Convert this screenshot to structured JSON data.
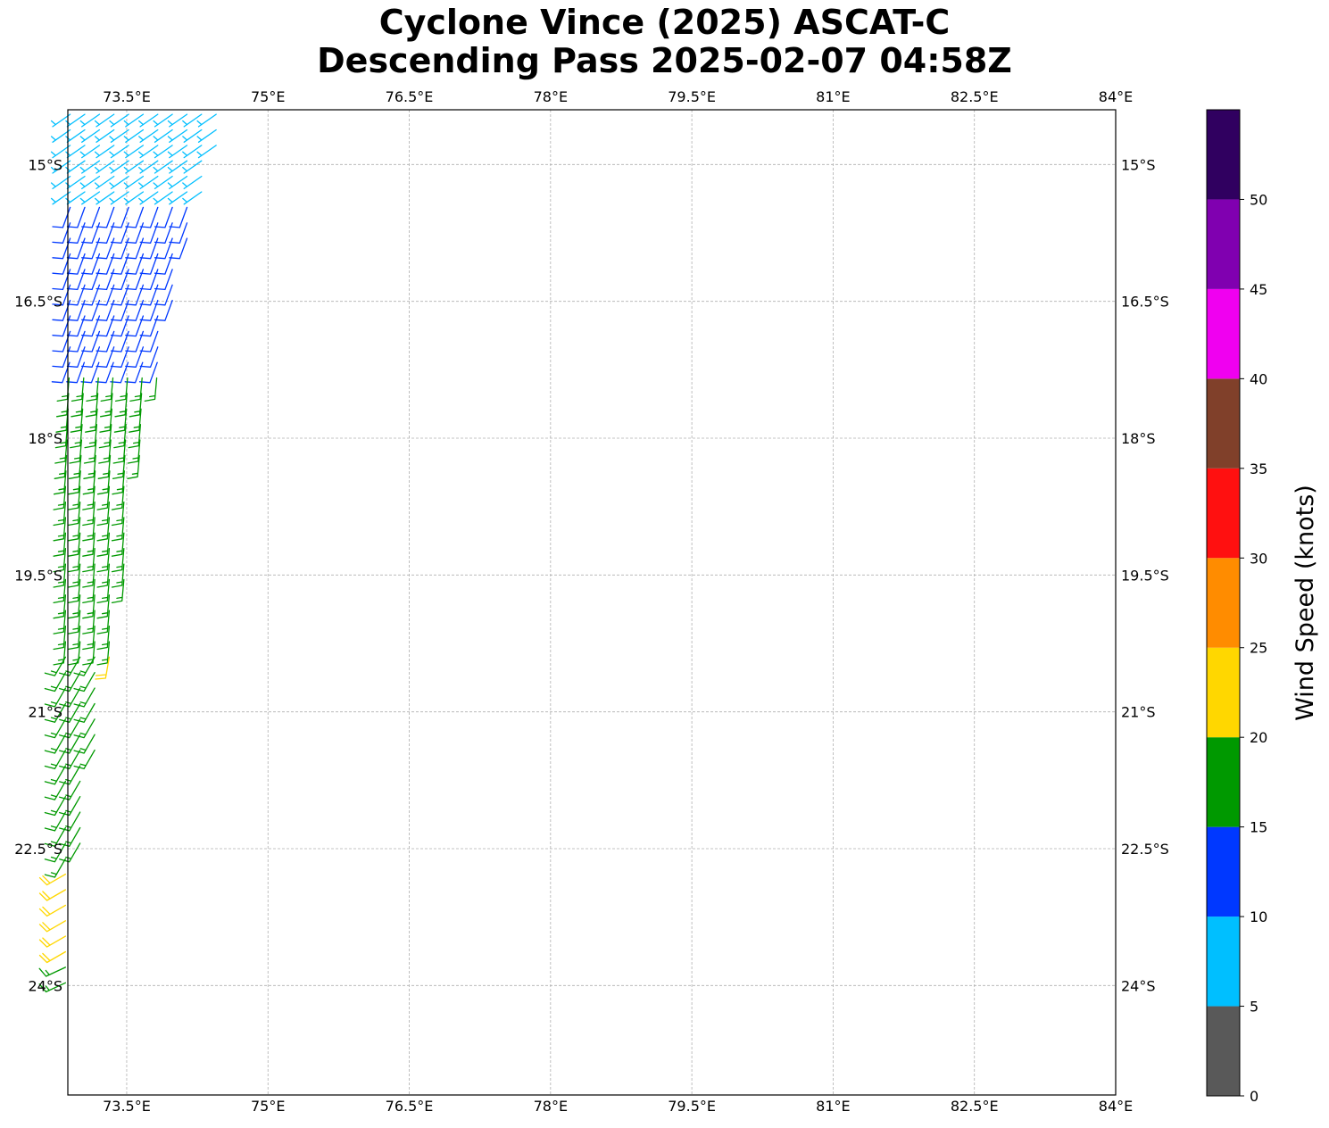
{
  "title": {
    "line1": "Cyclone Vince (2025) ASCAT-C",
    "line2": "Descending Pass 2025-02-07 04:58Z"
  },
  "chart_data": {
    "type": "wind_barb_map",
    "title": "Cyclone Vince (2025) ASCAT-C Descending Pass 2025-02-07 04:58Z",
    "xlim": [
      72.875,
      84.0
    ],
    "ylim": [
      -25.2,
      -14.4
    ],
    "x_ticks": [
      73.5,
      75,
      76.5,
      78,
      79.5,
      81,
      82.5,
      84
    ],
    "x_tick_labels": [
      "73.5°E",
      "75°E",
      "76.5°E",
      "78°E",
      "79.5°E",
      "81°E",
      "82.5°E",
      "84°E"
    ],
    "y_ticks": [
      -15,
      -16.5,
      -18,
      -19.5,
      -21,
      -22.5,
      -24
    ],
    "y_tick_labels": [
      "15°S",
      "16.5°S",
      "18°S",
      "19.5°S",
      "21°S",
      "22.5°S",
      "24°S"
    ],
    "grid": true,
    "colorbar": {
      "label": "Wind Speed (knots)",
      "bounds": [
        0,
        5,
        10,
        15,
        20,
        25,
        30,
        35,
        40,
        45,
        50,
        55
      ],
      "tick_labels": [
        "0",
        "5",
        "10",
        "15",
        "20",
        "25",
        "30",
        "35",
        "40",
        "45",
        "50"
      ],
      "colors": [
        "#595959",
        "#00bfff",
        "#0038ff",
        "#009900",
        "#ffd700",
        "#ff8c00",
        "#ff1010",
        "#80402a",
        "#f000f0",
        "#8000b0",
        "#300060"
      ]
    },
    "swath_west": [
      [
        72.9,
        -14.4
      ],
      [
        72.9,
        -17.0
      ],
      [
        72.85,
        -18.5
      ],
      [
        72.85,
        -20.5
      ],
      [
        72.85,
        -22.2
      ],
      [
        72.85,
        -24.05
      ]
    ],
    "swath_east": [
      [
        74.6,
        -14.4
      ],
      [
        74.3,
        -15.3
      ],
      [
        74.0,
        -16.5
      ],
      [
        73.8,
        -17.5
      ],
      [
        73.6,
        -18.5
      ],
      [
        73.5,
        -19.5
      ],
      [
        73.35,
        -20.2
      ],
      [
        73.2,
        -21.2
      ],
      [
        73.0,
        -22.5
      ],
      [
        72.95,
        -23.2
      ],
      [
        72.9,
        -24.05
      ]
    ],
    "barb_groups": [
      {
        "lat_from": -14.4,
        "lat_to": -15.3,
        "speed_kt": 7,
        "dir_from_deg": 235
      },
      {
        "lat_from": -15.3,
        "lat_to": -17.3,
        "speed_kt": 12,
        "dir_from_deg": 200
      },
      {
        "lat_from": -17.3,
        "lat_to": -20.3,
        "speed_kt": 17,
        "dir_from_deg": 185
      },
      {
        "lat_from": -20.3,
        "lat_to": -20.7,
        "speed_kt": 22,
        "dir_from_deg": 190,
        "east_part_only": true
      },
      {
        "lat_from": -20.3,
        "lat_to": -22.7,
        "speed_kt": 17,
        "dir_from_deg": 210
      },
      {
        "lat_from": -22.7,
        "lat_to": -23.7,
        "speed_kt": 22,
        "dir_from_deg": 240
      },
      {
        "lat_from": -23.7,
        "lat_to": -24.05,
        "speed_kt": 17,
        "dir_from_deg": 245
      }
    ]
  }
}
